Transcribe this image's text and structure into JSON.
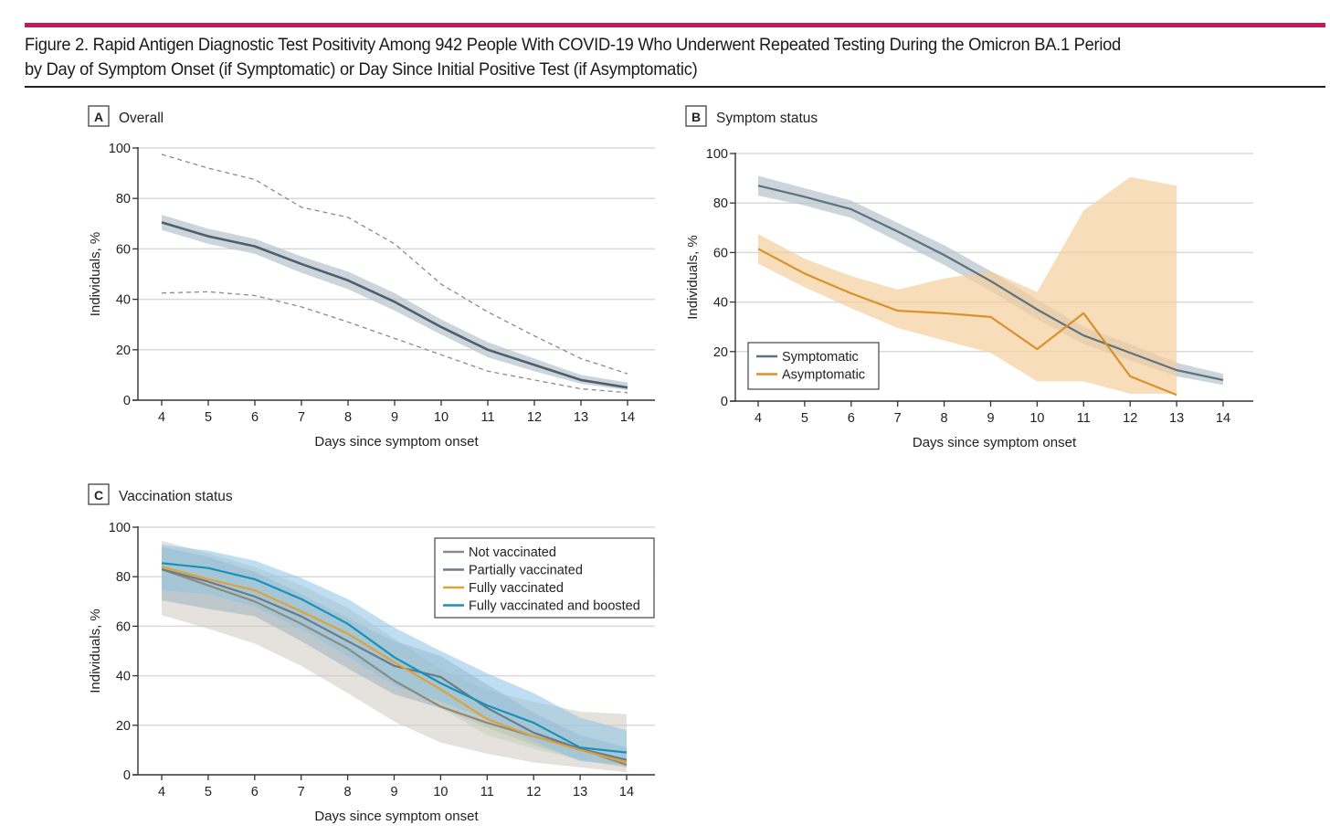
{
  "figure": {
    "title_line1": "Figure 2. Rapid Antigen Diagnostic Test Positivity Among 942 People With COVID-19 Who Underwent Repeated Testing During the Omicron BA.1 Period",
    "title_line2": "by Day of Symptom Onset (if Symptomatic) or Day Since Initial Positive Test (if Asymptomatic)",
    "accent_color": "#c8175a"
  },
  "chart_data": [
    {
      "id": "A",
      "type": "line",
      "letter": "A",
      "title": "Overall",
      "xlabel": "Days since symptom onset",
      "ylabel": "Individuals, %",
      "x": [
        4,
        5,
        6,
        7,
        8,
        9,
        10,
        11,
        12,
        13,
        14
      ],
      "xlim": [
        3.5,
        14.6
      ],
      "ylim": [
        0,
        100
      ],
      "yticks": [
        0,
        20,
        40,
        60,
        80,
        100
      ],
      "grid": true,
      "series": [
        {
          "name": "Overall",
          "color": "#4f5f6a",
          "band_color": "#b7c3cc",
          "values": [
            70.5,
            65,
            61,
            54,
            47.5,
            39,
            29,
            20,
            14,
            8,
            5
          ],
          "ci_lower": [
            67.5,
            62,
            58,
            50.5,
            44,
            35.5,
            26,
            17,
            11.5,
            6.5,
            4
          ],
          "ci_upper": [
            73.5,
            68,
            64,
            57,
            51,
            42.5,
            32,
            23,
            16.5,
            10,
            7
          ]
        }
      ],
      "dashed_bounds": {
        "color": "#8a8a8a",
        "upper": [
          97.5,
          92,
          87.5,
          76.5,
          72.5,
          62,
          46,
          35,
          25.5,
          16.5,
          10.5
        ],
        "lower": [
          42.5,
          43,
          41.5,
          37,
          31,
          24.5,
          18,
          11.5,
          8,
          4.5,
          3
        ]
      },
      "legend": null
    },
    {
      "id": "B",
      "type": "line",
      "letter": "B",
      "title": "Symptom status",
      "xlabel": "Days since symptom onset",
      "ylabel": "Individuals, %",
      "x": [
        4,
        5,
        6,
        7,
        8,
        9,
        10,
        11,
        12,
        13,
        14
      ],
      "xlim": [
        3.5,
        14.6
      ],
      "ylim": [
        0,
        100
      ],
      "yticks": [
        0,
        20,
        40,
        60,
        80,
        100
      ],
      "grid": true,
      "series": [
        {
          "name": "Symptomatic",
          "color": "#5f717c",
          "band_color": "#b5c3cc",
          "values": [
            87,
            82.5,
            77.5,
            68.5,
            59,
            48.5,
            37,
            26.5,
            19.5,
            12.5,
            8.5
          ],
          "ci_lower": [
            83,
            79,
            74,
            64.5,
            55,
            44.5,
            33,
            23,
            16.5,
            10,
            6.5
          ],
          "ci_upper": [
            91,
            86,
            81,
            72,
            63,
            52.5,
            41,
            30,
            23,
            15.5,
            11
          ]
        },
        {
          "name": "Asymptomatic",
          "color": "#d9912a",
          "band_color": "#f5cf9c",
          "x": [
            4,
            5,
            6,
            7,
            8,
            9,
            10,
            11,
            12,
            13
          ],
          "values": [
            61.5,
            51.5,
            43.5,
            36.5,
            35.5,
            34,
            21,
            35.5,
            10,
            2.5
          ],
          "ci_lower": [
            55.5,
            46,
            37.5,
            29.5,
            24.5,
            19.5,
            8,
            8,
            3,
            3
          ],
          "ci_upper": [
            67.5,
            57.5,
            50.5,
            45,
            49.5,
            52.5,
            44,
            77,
            90.5,
            87
          ]
        }
      ],
      "legend": {
        "placement": "bottom-left",
        "entries": [
          "Symptomatic",
          "Asymptomatic"
        ]
      }
    },
    {
      "id": "C",
      "type": "line",
      "letter": "C",
      "title": "Vaccination status",
      "xlabel": "Days since symptom onset",
      "ylabel": "Individuals, %",
      "x": [
        4,
        5,
        6,
        7,
        8,
        9,
        10,
        11,
        12,
        13,
        14
      ],
      "xlim": [
        3.5,
        14.6
      ],
      "ylim": [
        0,
        100
      ],
      "yticks": [
        0,
        20,
        40,
        60,
        80,
        100
      ],
      "grid": true,
      "series": [
        {
          "name": "Not vaccinated",
          "color": "#8e8a80",
          "band_color": "#cfcac2",
          "values": [
            83,
            76.5,
            70,
            61,
            51,
            38,
            27.5,
            21,
            15.5,
            10.5,
            4
          ],
          "ci_lower": [
            64.5,
            59,
            53,
            44,
            33,
            21.5,
            13,
            8.5,
            5,
            3,
            1
          ],
          "ci_upper": [
            94.5,
            89.5,
            84,
            76.5,
            67.5,
            55,
            42.5,
            34,
            29.5,
            25.5,
            24.5
          ]
        },
        {
          "name": "Partially vaccinated",
          "color": "#6b7c88",
          "band_color": "#9fb0bc",
          "values": [
            83,
            78,
            72,
            64,
            54,
            44,
            39.5,
            27,
            17,
            10.5,
            6
          ],
          "ci_lower": [
            70.5,
            67,
            64,
            54,
            43,
            32.5,
            27,
            19,
            12,
            6,
            3
          ],
          "ci_upper": [
            92,
            88,
            82,
            73,
            63,
            54,
            48,
            36.5,
            25,
            16,
            11
          ]
        },
        {
          "name": "Fully vaccinated",
          "color": "#e0a13c",
          "band_color": "#c8cfb8",
          "values": [
            84,
            79,
            74.5,
            66,
            57,
            45.5,
            34.5,
            22.5,
            15.5,
            10,
            5
          ],
          "ci_lower": [
            78,
            73,
            69,
            59,
            50,
            38.5,
            27,
            16,
            10.5,
            6,
            3
          ],
          "ci_upper": [
            89.5,
            85,
            80,
            72.5,
            64,
            53,
            42.5,
            30,
            21.5,
            14.5,
            10
          ]
        },
        {
          "name": "Fully vaccinated and boosted",
          "color": "#1a8fbd",
          "band_color": "#8cc3e6",
          "values": [
            85.5,
            83.5,
            79,
            71,
            61,
            47.5,
            37,
            28,
            21,
            11,
            9
          ],
          "ci_lower": [
            74.5,
            73,
            68,
            59,
            48,
            36,
            29.5,
            22.5,
            13.5,
            5.5,
            4
          ],
          "ci_upper": [
            93,
            90.5,
            86.5,
            79.5,
            71,
            59.5,
            50,
            41,
            33,
            23,
            18
          ]
        }
      ],
      "legend": {
        "placement": "top-right",
        "entries": [
          "Not vaccinated",
          "Partially vaccinated",
          "Fully vaccinated",
          "Fully vaccinated and boosted"
        ]
      }
    }
  ]
}
